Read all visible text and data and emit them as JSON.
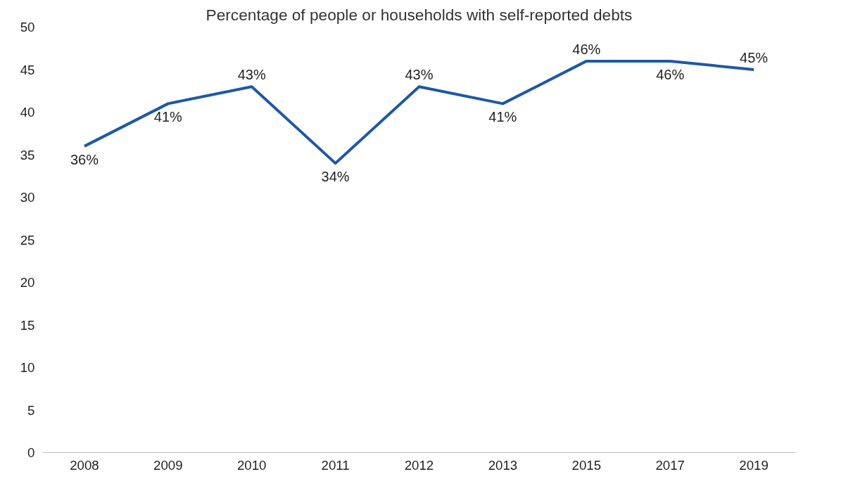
{
  "chart_data": {
    "type": "line",
    "title": "Percentage of people or households with self-reported debts",
    "categories": [
      "2008",
      "2009",
      "2010",
      "2011",
      "2012",
      "2013",
      "2015",
      "2017",
      "2019"
    ],
    "series": [
      {
        "color": "#1f58a5",
        "values": [
          36,
          41,
          43,
          34,
          43,
          41,
          46,
          46,
          45
        ],
        "value_labels": [
          "36%",
          "41%",
          "43%",
          "34%",
          "43%",
          "41%",
          "46%",
          "46%",
          "45%"
        ]
      }
    ],
    "ylim": [
      0,
      50
    ],
    "yticks": [
      0,
      5,
      10,
      15,
      20,
      25,
      30,
      35,
      40,
      45,
      50
    ],
    "grid": false,
    "marker": "none",
    "line_style": "solid"
  }
}
